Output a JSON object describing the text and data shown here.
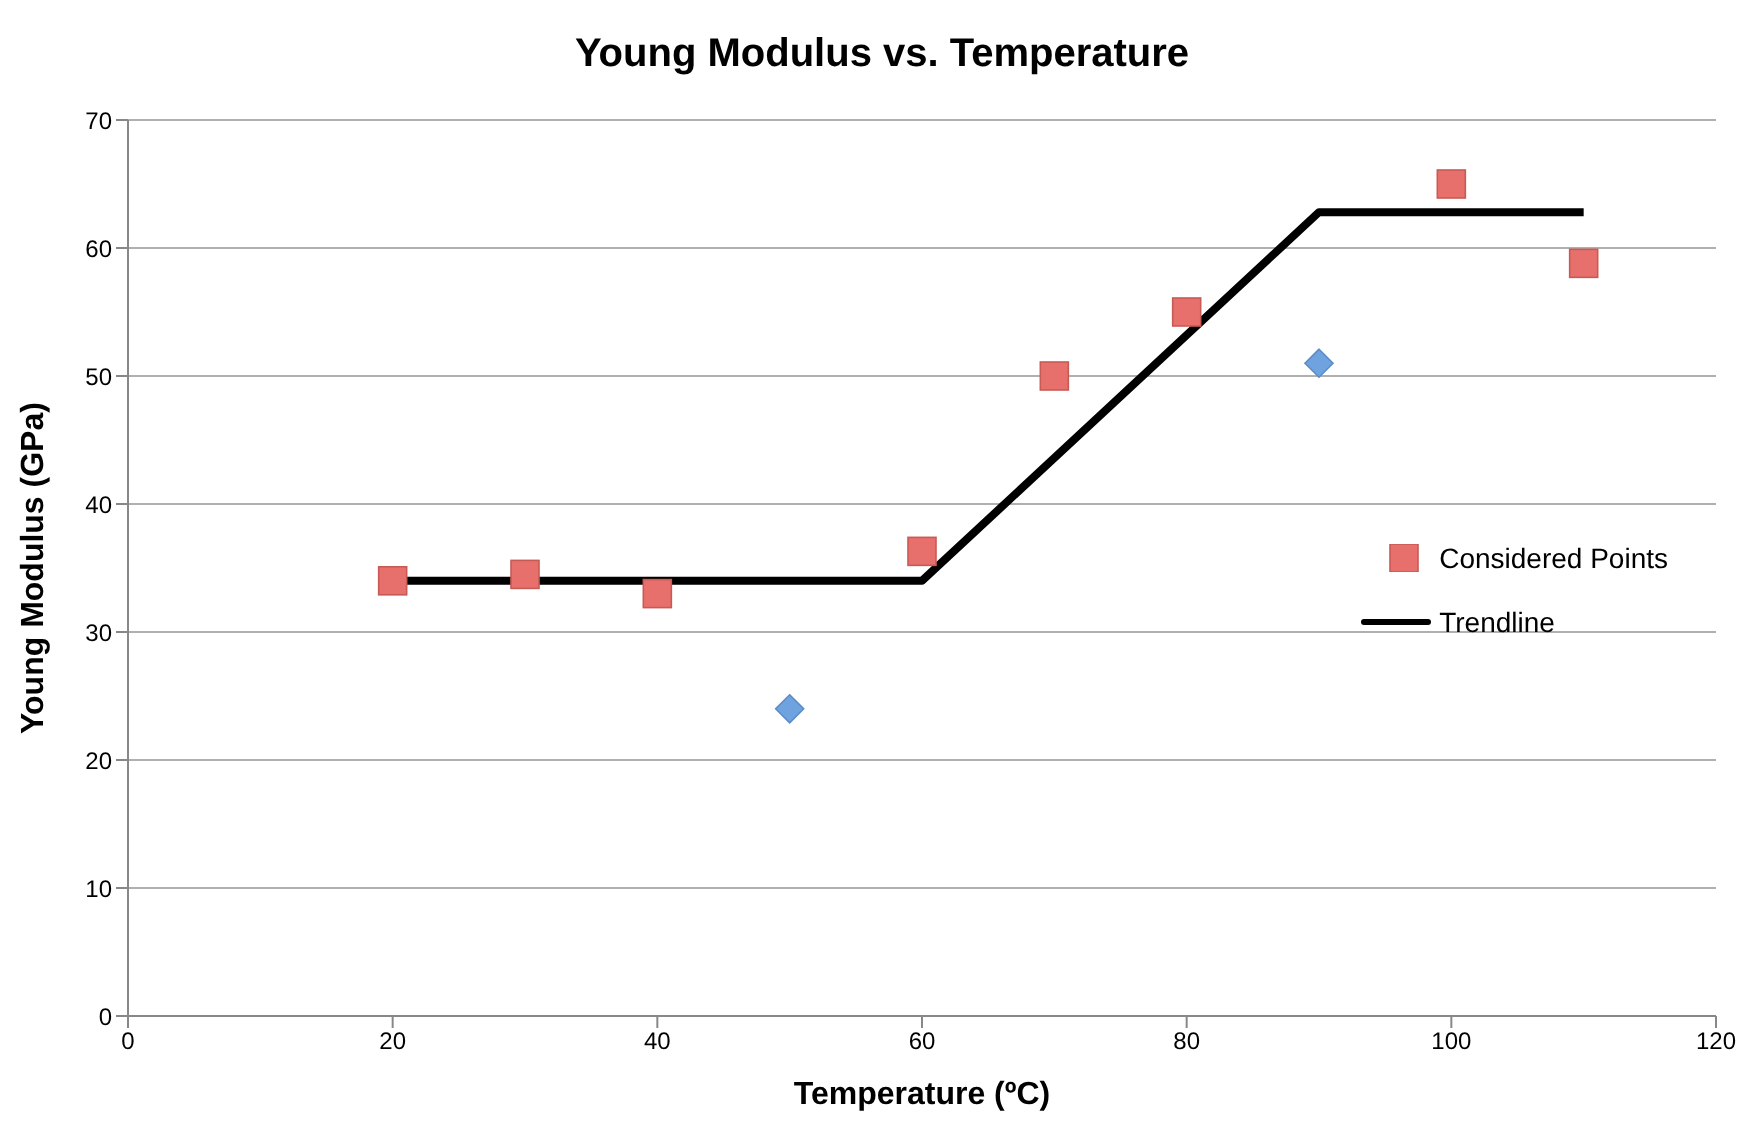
{
  "chart_data": {
    "type": "scatter",
    "title": "Young Modulus vs. Temperature",
    "xlabel": "Temperature (ºC)",
    "ylabel": "Young Modulus (GPa)",
    "xlim": [
      0,
      120
    ],
    "xticks": [
      0,
      20,
      40,
      60,
      80,
      100,
      120
    ],
    "ylim": [
      0,
      70
    ],
    "yticks": [
      0,
      10,
      20,
      30,
      40,
      50,
      60,
      70
    ],
    "grid": "y",
    "legend": "right",
    "series": [
      {
        "name": "Considered Points",
        "marker": "square",
        "color": "#e8706c",
        "x": [
          20,
          30,
          40,
          60,
          70,
          80,
          100,
          110
        ],
        "values": [
          34,
          34.5,
          33,
          36.3,
          50,
          55,
          65,
          58.8
        ]
      },
      {
        "marker": "diamond",
        "color": "#6fa3e0",
        "x": [
          50,
          90
        ],
        "values": [
          24,
          51
        ]
      },
      {
        "name": "Trendline",
        "type": "line",
        "marker": "none",
        "color": "#000000",
        "x": [
          20,
          60,
          90,
          110
        ],
        "values": [
          34,
          34,
          62.8,
          62.8
        ]
      }
    ]
  }
}
